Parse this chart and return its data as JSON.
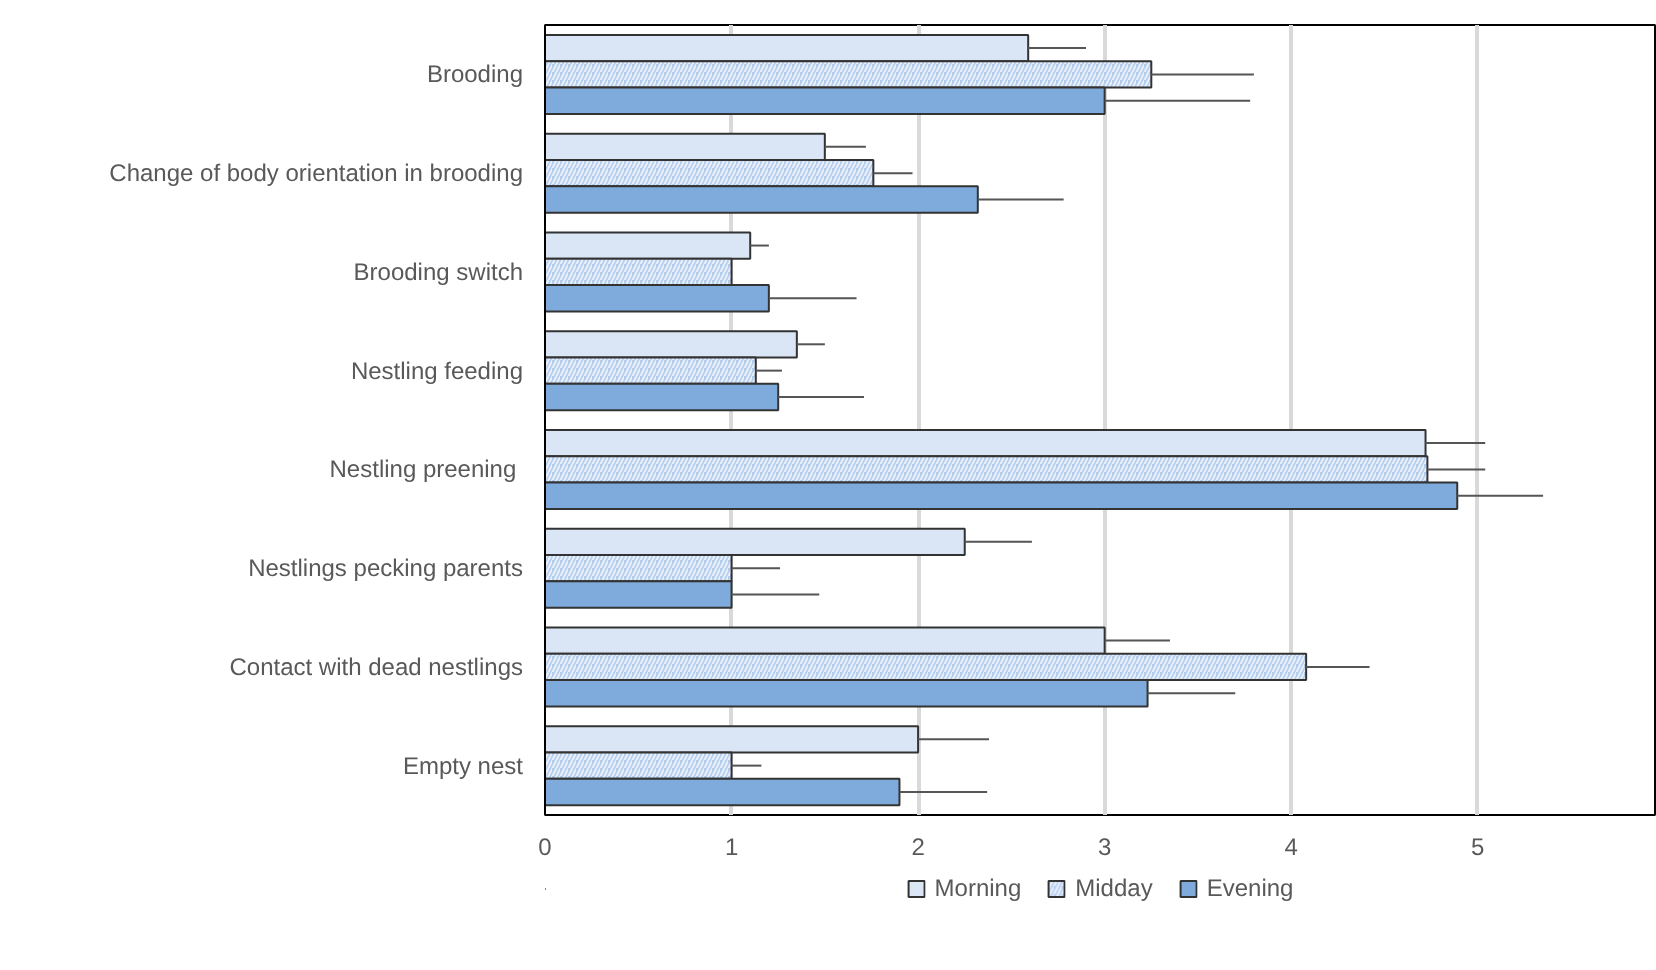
{
  "chart_data": {
    "type": "bar",
    "orientation": "horizontal",
    "categories": [
      "Brooding",
      "Change of body orientation in brooding",
      "Brooding switch",
      "Nestling feeding",
      "Nestling preening ",
      "Nestlings pecking parents",
      "Contact with dead nestlings",
      "Empty nest"
    ],
    "series": [
      {
        "name": "Morning",
        "color": "#dae6f5",
        "values": [
          2.59,
          1.5,
          1.1,
          1.35,
          4.72,
          2.25,
          3.0,
          2.0
        ],
        "errors": [
          [
            2.59,
            2.9
          ],
          [
            1.5,
            1.72
          ],
          [
            1.1,
            1.2
          ],
          [
            1.35,
            1.5
          ],
          [
            4.72,
            5.04
          ],
          [
            2.25,
            2.61
          ],
          [
            3.0,
            3.35
          ],
          [
            2.0,
            2.38
          ]
        ]
      },
      {
        "name": "Midday",
        "color": "#b4cdee",
        "values": [
          3.25,
          1.76,
          1.0,
          1.13,
          4.73,
          1.0,
          4.08,
          1.0
        ],
        "errors": [
          [
            3.25,
            3.8
          ],
          [
            1.76,
            1.97
          ],
          null,
          [
            1.13,
            1.27
          ],
          [
            4.73,
            5.04
          ],
          [
            1.0,
            1.26
          ],
          [
            4.08,
            4.42
          ],
          [
            1.0,
            1.16
          ]
        ]
      },
      {
        "name": "Evening",
        "color": "#7fabdc",
        "values": [
          3.0,
          2.32,
          1.2,
          1.25,
          4.89,
          1.0,
          3.23,
          1.9
        ],
        "errors": [
          [
            3.0,
            3.78
          ],
          [
            2.32,
            2.78
          ],
          [
            1.2,
            1.67
          ],
          [
            1.25,
            1.71
          ],
          [
            4.89,
            5.35
          ],
          [
            1.0,
            1.47
          ],
          [
            3.23,
            3.7
          ],
          [
            1.9,
            2.37
          ]
        ]
      }
    ],
    "xlim": [
      0,
      5.95
    ],
    "xticks": [
      0,
      1,
      2,
      3,
      4,
      5
    ],
    "grid": "x",
    "legend": "bottom"
  }
}
